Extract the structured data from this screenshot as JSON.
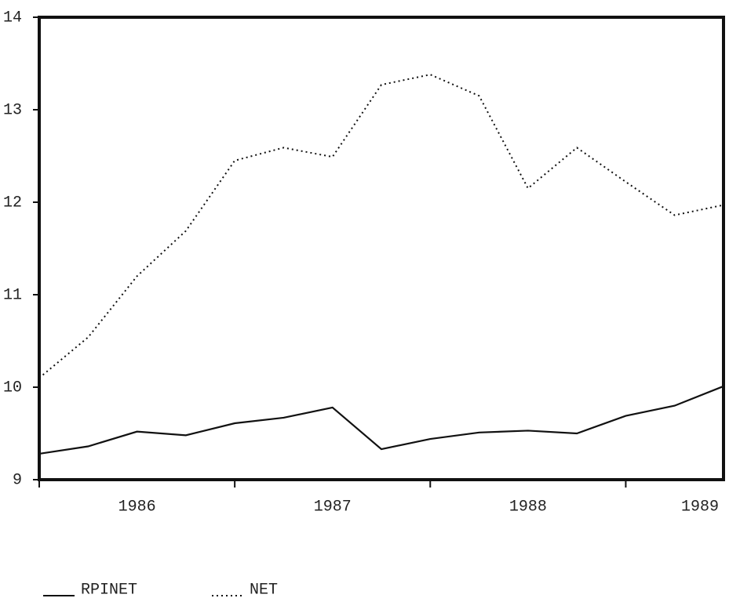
{
  "chart_data": {
    "type": "line",
    "x": [
      1986,
      1986.25,
      1986.5,
      1986.75,
      1987,
      1987.25,
      1987.5,
      1987.75,
      1988,
      1988.25,
      1988.5,
      1988.75,
      1989,
      1989.25,
      1989.5
    ],
    "xlim": [
      1986,
      1989.5
    ],
    "xticks": [
      1986,
      1987,
      1988,
      1989
    ],
    "ylim": [
      9,
      14
    ],
    "yticks": [
      9,
      10,
      11,
      12,
      13,
      14
    ],
    "series": [
      {
        "name": "RPINET",
        "color": "#111111",
        "style": "solid",
        "values": [
          9.28,
          9.36,
          9.52,
          9.48,
          9.61,
          9.67,
          9.78,
          9.33,
          9.44,
          9.51,
          9.53,
          9.5,
          9.69,
          9.8,
          10.01
        ]
      },
      {
        "name": "NET",
        "color": "#111111",
        "style": "dotted",
        "values": [
          10.1,
          10.54,
          11.2,
          11.69,
          12.45,
          12.59,
          12.49,
          13.27,
          13.38,
          13.15,
          12.15,
          12.59,
          12.22,
          11.86,
          11.97
        ]
      }
    ]
  }
}
